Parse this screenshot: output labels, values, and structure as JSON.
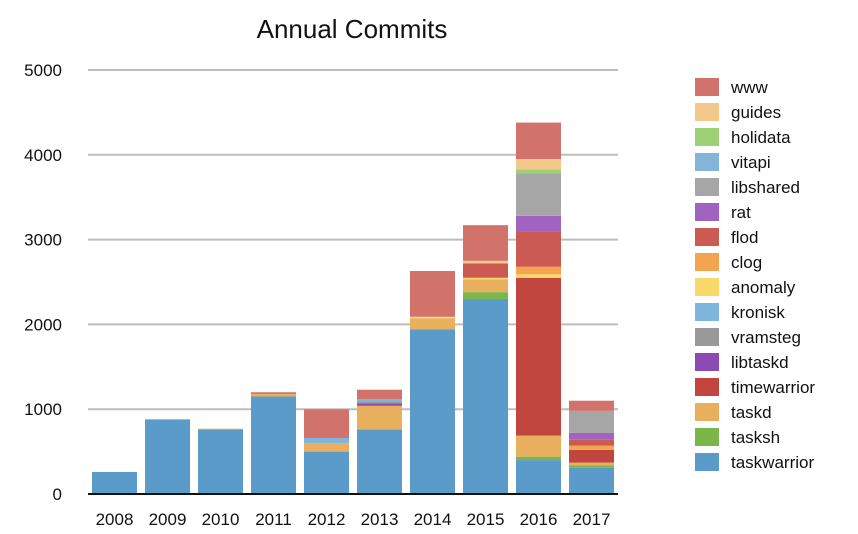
{
  "chart_data": {
    "type": "bar",
    "stacked": true,
    "title": "Annual Commits",
    "xlabel": "",
    "ylabel": "",
    "ylim": [
      0,
      5000
    ],
    "yticks": [
      0,
      1000,
      2000,
      3000,
      4000,
      5000
    ],
    "grid": true,
    "legend_position": "right",
    "categories": [
      "2008",
      "2009",
      "2010",
      "2011",
      "2012",
      "2013",
      "2014",
      "2015",
      "2016",
      "2017"
    ],
    "series": [
      {
        "name": "taskwarrior",
        "color": "#5b9bc9",
        "values": [
          260,
          880,
          760,
          1150,
          500,
          760,
          1940,
          2300,
          400,
          310
        ]
      },
      {
        "name": "tasksh",
        "color": "#7ab648",
        "values": [
          0,
          0,
          0,
          0,
          0,
          0,
          0,
          80,
          40,
          30
        ]
      },
      {
        "name": "taskd",
        "color": "#e8b05e",
        "values": [
          0,
          0,
          10,
          30,
          100,
          280,
          130,
          150,
          250,
          30
        ]
      },
      {
        "name": "timewarrior",
        "color": "#c0463f",
        "values": [
          0,
          0,
          0,
          0,
          0,
          0,
          0,
          0,
          1860,
          150
        ]
      },
      {
        "name": "libtaskd",
        "color": "#8e4ab3",
        "values": [
          0,
          0,
          0,
          0,
          0,
          30,
          0,
          0,
          0,
          0
        ]
      },
      {
        "name": "vramsteg",
        "color": "#999999",
        "values": [
          0,
          0,
          0,
          0,
          0,
          20,
          0,
          0,
          0,
          0
        ]
      },
      {
        "name": "kronisk",
        "color": "#7eb5dc",
        "values": [
          0,
          0,
          0,
          0,
          60,
          30,
          0,
          0,
          0,
          0
        ]
      },
      {
        "name": "anomaly",
        "color": "#f9d96a",
        "values": [
          0,
          0,
          0,
          0,
          0,
          0,
          20,
          20,
          40,
          0
        ]
      },
      {
        "name": "clog",
        "color": "#f2a44f",
        "values": [
          0,
          0,
          0,
          0,
          0,
          0,
          0,
          0,
          90,
          50
        ]
      },
      {
        "name": "flod",
        "color": "#cb5a52",
        "values": [
          0,
          0,
          0,
          0,
          0,
          0,
          0,
          170,
          410,
          70
        ]
      },
      {
        "name": "rat",
        "color": "#a163c0",
        "values": [
          0,
          0,
          0,
          0,
          0,
          0,
          0,
          0,
          190,
          80
        ]
      },
      {
        "name": "libshared",
        "color": "#a6a6a6",
        "values": [
          0,
          0,
          0,
          0,
          0,
          0,
          0,
          0,
          500,
          260
        ]
      },
      {
        "name": "vitapi",
        "color": "#85b4db",
        "values": [
          0,
          0,
          0,
          0,
          0,
          0,
          0,
          0,
          0,
          0
        ]
      },
      {
        "name": "holidata",
        "color": "#9dd173",
        "values": [
          0,
          0,
          0,
          0,
          0,
          0,
          0,
          0,
          50,
          0
        ]
      },
      {
        "name": "guides",
        "color": "#f3c98b",
        "values": [
          0,
          0,
          0,
          0,
          0,
          0,
          0,
          30,
          120,
          0
        ]
      },
      {
        "name": "www",
        "color": "#d1736a",
        "values": [
          0,
          0,
          0,
          20,
          340,
          110,
          540,
          420,
          430,
          120
        ]
      }
    ]
  }
}
